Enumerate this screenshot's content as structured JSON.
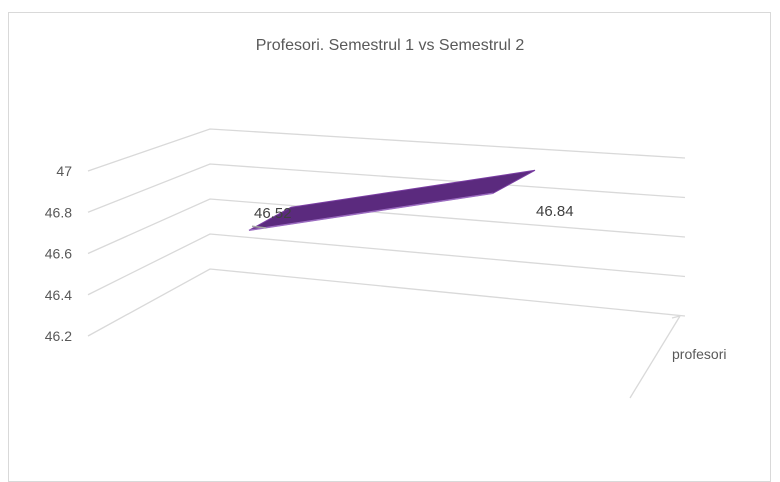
{
  "chart_data": {
    "type": "line",
    "style": "3d",
    "title": "Profesori. Semestrul 1 vs Semestrul 2",
    "ylim": [
      46.2,
      47
    ],
    "y_ticks": [
      "46.2",
      "46.4",
      "46.6",
      "46.8",
      "47"
    ],
    "series": [
      {
        "name": "profesori",
        "values": [
          46.52,
          46.84
        ]
      }
    ],
    "data_labels": [
      "46.52",
      "46.84"
    ],
    "grid": true,
    "legend": "none",
    "colors": {
      "line": "#5b2a7e",
      "line_top": "#7a3ea3",
      "grid": "#d9d9d9",
      "text": "#595959"
    }
  }
}
